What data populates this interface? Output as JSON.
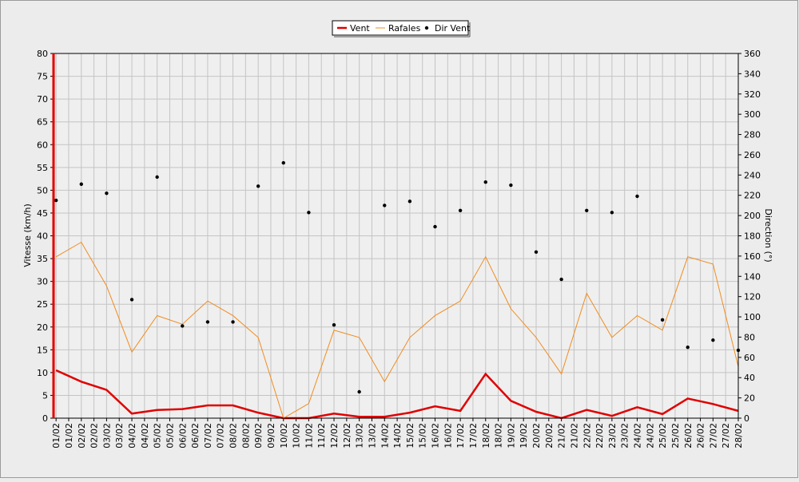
{
  "chart_data": {
    "type": "line",
    "x": [
      1,
      2,
      3,
      4,
      5,
      6,
      7,
      8,
      9,
      10,
      11,
      12,
      13,
      14,
      15,
      16,
      17,
      18,
      19,
      20,
      21,
      22,
      23,
      24,
      25,
      26,
      27,
      28
    ],
    "xlim": [
      0.9,
      28
    ],
    "xticks": [
      {
        "value": 1,
        "label": "01/02"
      },
      {
        "value": 1.5,
        "label": "01/02"
      },
      {
        "value": 2,
        "label": "02/02"
      },
      {
        "value": 2.5,
        "label": "02/02"
      },
      {
        "value": 3,
        "label": "03/02"
      },
      {
        "value": 3.5,
        "label": "03/02"
      },
      {
        "value": 4,
        "label": "04/02"
      },
      {
        "value": 4.5,
        "label": "04/02"
      },
      {
        "value": 5,
        "label": "05/02"
      },
      {
        "value": 5.5,
        "label": "05/02"
      },
      {
        "value": 6,
        "label": "06/02"
      },
      {
        "value": 6.5,
        "label": "06/02"
      },
      {
        "value": 7,
        "label": "07/02"
      },
      {
        "value": 7.5,
        "label": "07/02"
      },
      {
        "value": 8,
        "label": "08/02"
      },
      {
        "value": 8.5,
        "label": "08/02"
      },
      {
        "value": 9,
        "label": "09/02"
      },
      {
        "value": 9.5,
        "label": "09/02"
      },
      {
        "value": 10,
        "label": "10/02"
      },
      {
        "value": 10.5,
        "label": "10/02"
      },
      {
        "value": 11,
        "label": "11/02"
      },
      {
        "value": 11.5,
        "label": "11/02"
      },
      {
        "value": 12,
        "label": "12/02"
      },
      {
        "value": 12.5,
        "label": "12/02"
      },
      {
        "value": 13,
        "label": "13/02"
      },
      {
        "value": 13.5,
        "label": "13/02"
      },
      {
        "value": 14,
        "label": "14/02"
      },
      {
        "value": 14.5,
        "label": "14/02"
      },
      {
        "value": 15,
        "label": "15/02"
      },
      {
        "value": 15.5,
        "label": "15/02"
      },
      {
        "value": 16,
        "label": "16/02"
      },
      {
        "value": 16.5,
        "label": "16/02"
      },
      {
        "value": 17,
        "label": "17/02"
      },
      {
        "value": 17.5,
        "label": "17/02"
      },
      {
        "value": 18,
        "label": "18/02"
      },
      {
        "value": 18.5,
        "label": "18/02"
      },
      {
        "value": 19,
        "label": "19/02"
      },
      {
        "value": 19.5,
        "label": "19/02"
      },
      {
        "value": 20,
        "label": "20/02"
      },
      {
        "value": 20.5,
        "label": "20/02"
      },
      {
        "value": 21,
        "label": "21/02"
      },
      {
        "value": 21.5,
        "label": "21/02"
      },
      {
        "value": 22,
        "label": "22/02"
      },
      {
        "value": 22.5,
        "label": "22/02"
      },
      {
        "value": 23,
        "label": "23/02"
      },
      {
        "value": 23.5,
        "label": "23/02"
      },
      {
        "value": 24,
        "label": "24/02"
      },
      {
        "value": 24.5,
        "label": "24/02"
      },
      {
        "value": 25,
        "label": "25/02"
      },
      {
        "value": 25.5,
        "label": "25/02"
      },
      {
        "value": 26,
        "label": "26/02"
      },
      {
        "value": 26.5,
        "label": "26/02"
      },
      {
        "value": 27,
        "label": "27/02"
      },
      {
        "value": 27.5,
        "label": "27/02"
      },
      {
        "value": 28,
        "label": "28/02"
      }
    ],
    "ylabel": "Vitesse (km/h)",
    "ylim": [
      0,
      80
    ],
    "yticks": [
      0,
      5,
      10,
      15,
      20,
      25,
      30,
      35,
      40,
      45,
      50,
      55,
      60,
      65,
      70,
      75,
      80
    ],
    "y2label": "Direction (°)",
    "y2lim": [
      0,
      360
    ],
    "y2ticks": [
      0,
      20,
      40,
      60,
      80,
      100,
      120,
      140,
      160,
      180,
      200,
      220,
      240,
      260,
      280,
      300,
      320,
      340,
      360
    ],
    "grid": true,
    "legend": "top",
    "series": [
      {
        "name": "Vent",
        "type": "line",
        "color": "#e00000",
        "values": [
          10.5,
          8,
          6.2,
          1,
          1.8,
          2,
          2.8,
          2.8,
          1.2,
          0,
          0,
          1,
          0.3,
          0.3,
          1.2,
          2.6,
          1.6,
          9.7,
          3.8,
          1.4,
          0,
          1.8,
          0.5,
          2.4,
          0.9,
          4.3,
          3.1,
          1.6
        ]
      },
      {
        "name": "Rafales",
        "type": "line",
        "color": "#f08c1e",
        "values": [
          35.4,
          38.6,
          29,
          14.5,
          22.5,
          20.6,
          25.7,
          22.5,
          17.7,
          0,
          3.2,
          19.3,
          17.7,
          8,
          17.7,
          22.5,
          25.7,
          35.4,
          24,
          17.7,
          9.7,
          27.4,
          17.7,
          22.5,
          19.3,
          35.4,
          33.8,
          11.3
        ]
      },
      {
        "name": "Dir Vent",
        "type": "scatter",
        "axis": "y2",
        "color": "#000000",
        "values": [
          215,
          231,
          222,
          117,
          238,
          91,
          95,
          95,
          229,
          252,
          203,
          92,
          26,
          210,
          214,
          189,
          205,
          233,
          230,
          164,
          137,
          205,
          203,
          219,
          97,
          70,
          77,
          67
        ]
      }
    ]
  }
}
